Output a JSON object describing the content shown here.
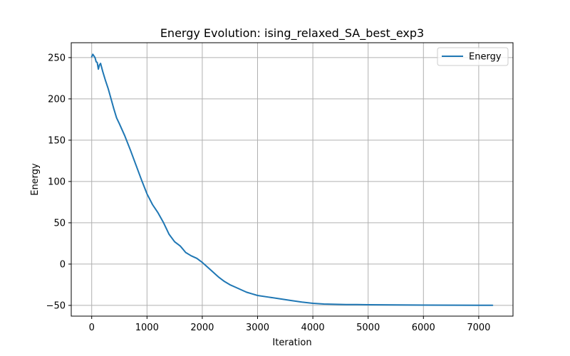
{
  "chart_data": {
    "type": "line",
    "title": "Energy Evolution: ising_relaxed_SA_best_exp3",
    "xlabel": "Iteration",
    "ylabel": "Energy",
    "xlim": [
      -370,
      7620
    ],
    "ylim": [
      -63,
      268
    ],
    "xticks": [
      0,
      1000,
      2000,
      3000,
      4000,
      5000,
      6000,
      7000
    ],
    "yticks": [
      -50,
      0,
      50,
      100,
      150,
      200,
      250
    ],
    "grid": true,
    "legend_position": "top-right",
    "colors": {
      "line": "#1f77b4",
      "grid": "#b0b0b0",
      "axis": "#000000"
    },
    "series": [
      {
        "name": "Energy",
        "x": [
          0,
          20,
          40,
          60,
          80,
          100,
          120,
          140,
          160,
          180,
          200,
          250,
          300,
          350,
          400,
          450,
          500,
          600,
          700,
          800,
          900,
          1000,
          1100,
          1200,
          1300,
          1400,
          1500,
          1600,
          1700,
          1800,
          1900,
          2000,
          2100,
          2200,
          2300,
          2400,
          2500,
          2600,
          2700,
          2800,
          2900,
          3000,
          3200,
          3400,
          3600,
          3800,
          4000,
          4200,
          4400,
          4600,
          4800,
          5000,
          5500,
          6000,
          6500,
          7000,
          7250
        ],
        "y": [
          251,
          254,
          252,
          250,
          245,
          244,
          236,
          241,
          243,
          238,
          233,
          222,
          212,
          200,
          188,
          177,
          170,
          155,
          138,
          120,
          102,
          85,
          72,
          62,
          50,
          36,
          27,
          22,
          14,
          10,
          7,
          2,
          -4,
          -10,
          -16,
          -21,
          -25,
          -28,
          -31,
          -34,
          -36,
          -38,
          -40,
          -42,
          -44,
          -46,
          -47.5,
          -48.3,
          -48.7,
          -49,
          -49,
          -49.2,
          -49.4,
          -49.6,
          -49.7,
          -49.8,
          -49.8
        ]
      }
    ]
  }
}
